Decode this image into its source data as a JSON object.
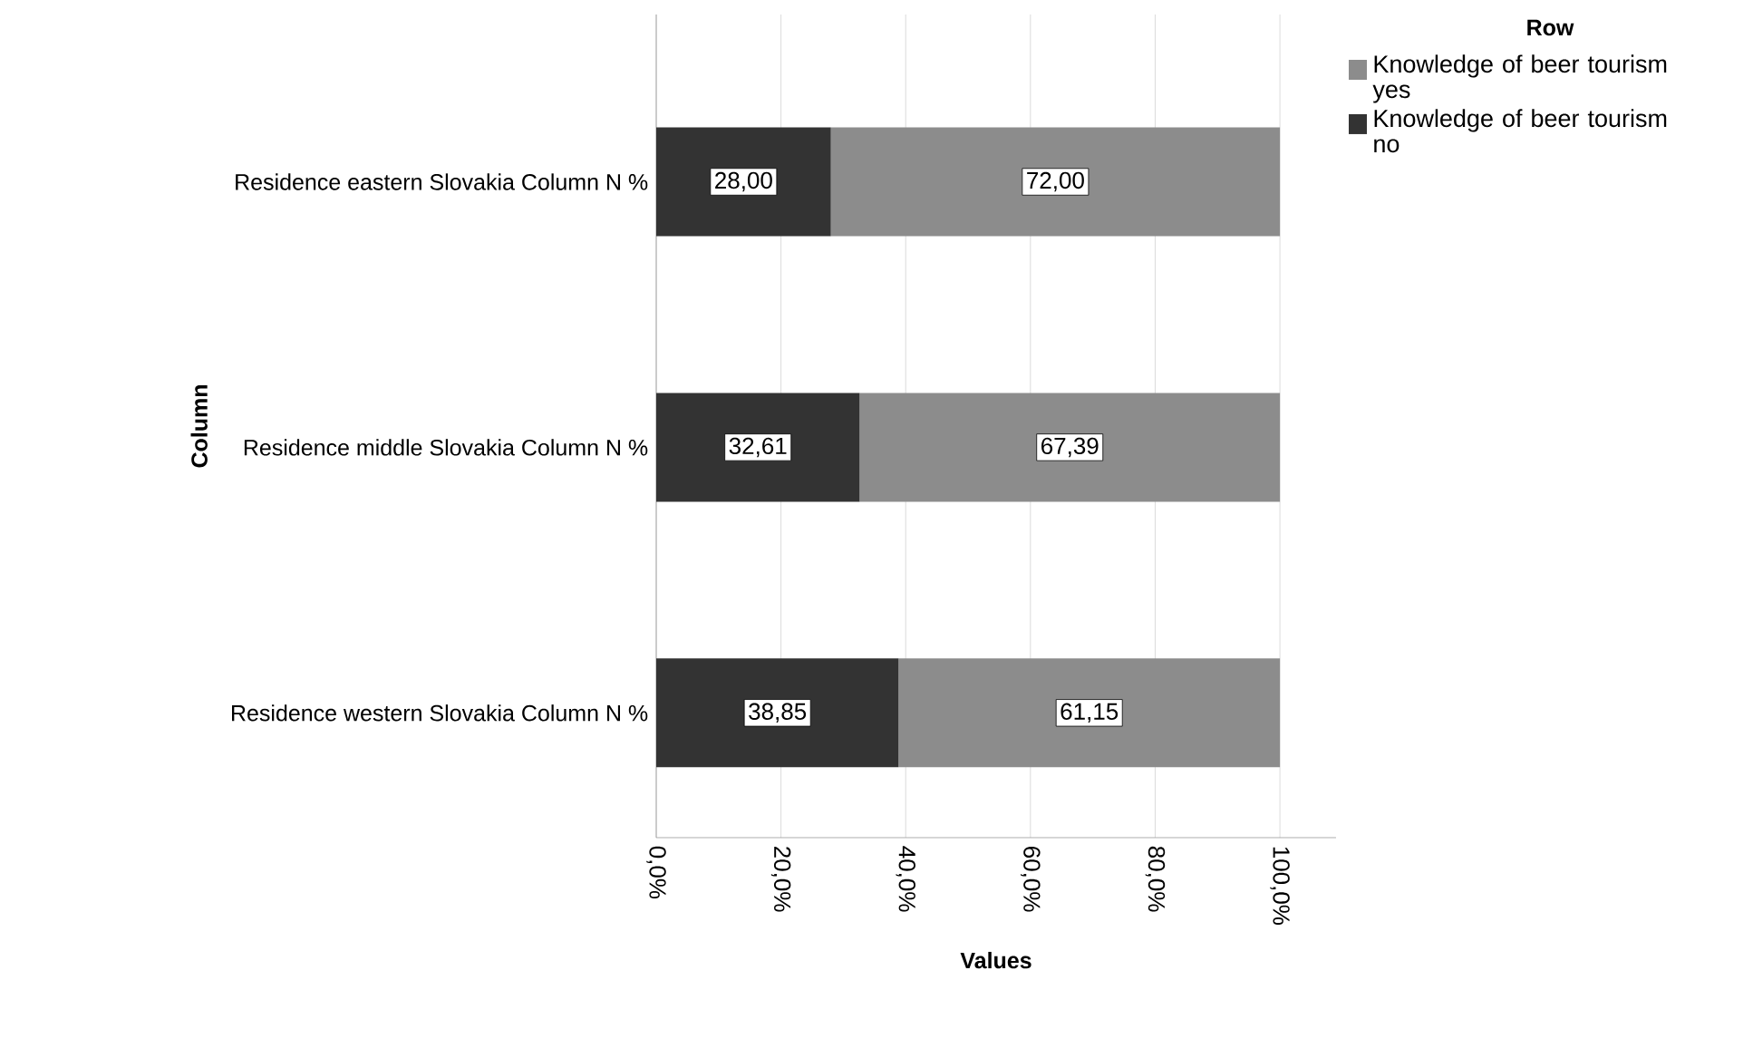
{
  "chart_data": {
    "type": "bar",
    "orientation": "horizontal",
    "stacked": true,
    "xlabel": "Values",
    "ylabel": "Column",
    "legend_title": "Row",
    "categories": [
      "Residence eastern Slovakia Column N %",
      "Residence middle Slovakia Column N %",
      "Residence western Slovakia Column N %"
    ],
    "series": [
      {
        "name": "Knowledge of beer tourism no",
        "color": "#333333",
        "values": [
          28.0,
          32.61,
          38.85
        ],
        "value_labels": [
          "28,00",
          "32,61",
          "38,85"
        ]
      },
      {
        "name": "Knowledge of beer tourism yes",
        "color": "#8c8c8c",
        "values": [
          72.0,
          67.39,
          61.15
        ],
        "value_labels": [
          "72,00",
          "67,39",
          "61,15"
        ]
      }
    ],
    "xlim": [
      0,
      109
    ],
    "xticks": [
      {
        "value": 0,
        "label": "0,0%"
      },
      {
        "value": 20,
        "label": "20,0%"
      },
      {
        "value": 40,
        "label": "40,0%"
      },
      {
        "value": 60,
        "label": "60,0%"
      },
      {
        "value": 80,
        "label": "80,0%"
      },
      {
        "value": 100,
        "label": "100,0%"
      }
    ],
    "grid": "x",
    "legend": "top right"
  }
}
